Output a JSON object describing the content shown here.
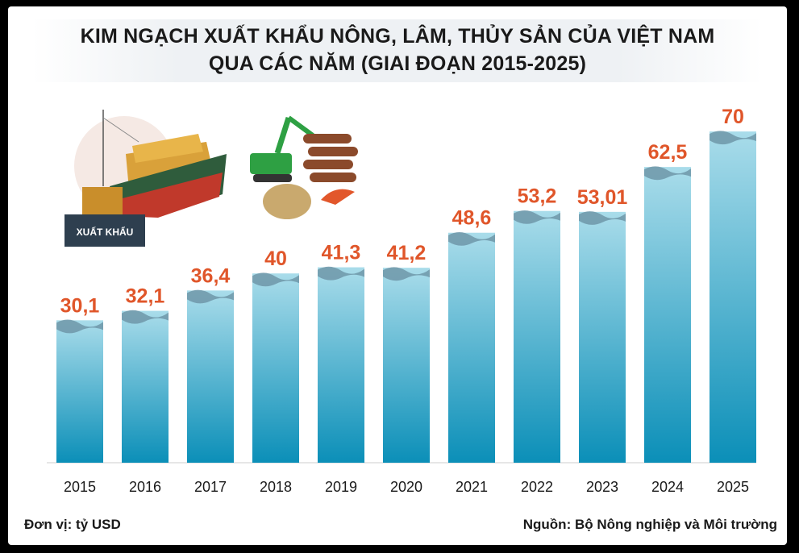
{
  "title_line1": "KIM NGẠCH XUẤT KHẨU NÔNG, LÂM, THỦY SẢN CỦA VIỆT NAM",
  "title_line2": "QUA CÁC NĂM (GIAI ĐOẠN 2015-2025)",
  "unit_label": "Đơn vị: tỷ USD",
  "source_label": "Nguồn: Bộ Nông nghiệp và Môi trường",
  "illustration_label": "XUẤT KHẨU",
  "colors": {
    "bar_top": "#a9dcea",
    "bar_bottom": "#0b8fb8",
    "value_label": "#e0562a",
    "wave": "#6e97a8"
  },
  "chart_data": {
    "type": "bar",
    "categories": [
      "2015",
      "2016",
      "2017",
      "2018",
      "2019",
      "2020",
      "2021",
      "2022",
      "2023",
      "2024",
      "2025"
    ],
    "values": [
      30.1,
      32.1,
      36.4,
      40,
      41.3,
      41.2,
      48.6,
      53.2,
      53.01,
      62.5,
      70
    ],
    "value_labels": [
      "30,1",
      "32,1",
      "36,4",
      "40",
      "41,3",
      "41,2",
      "48,6",
      "53,2",
      "53,01",
      "62,5",
      "70"
    ],
    "ylim": [
      0,
      75
    ],
    "grid": false,
    "legend": "none"
  }
}
